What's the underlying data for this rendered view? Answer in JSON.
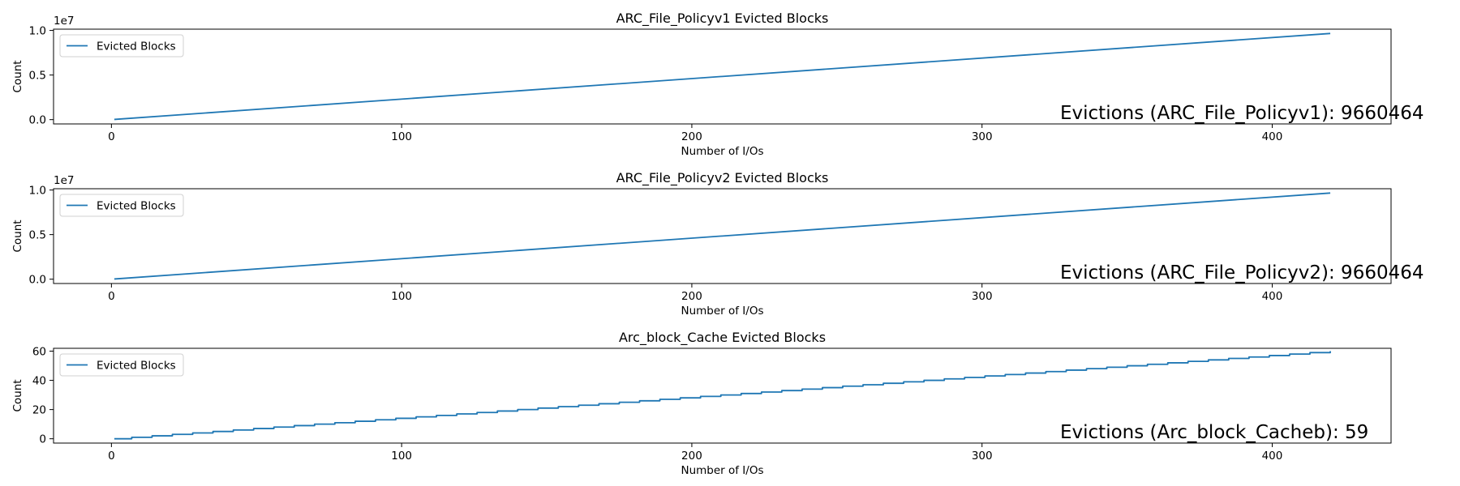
{
  "colors": {
    "series": "#1f77b4"
  },
  "chart_data": [
    {
      "type": "line",
      "title": "ARC_File_Policyv1 Evicted Blocks",
      "xlabel": "Number of I/Os",
      "ylabel": "Count",
      "x_range": [
        1,
        420
      ],
      "xlim": [
        -19.95,
        440.95
      ],
      "ylim": [
        -0.483,
        10.143
      ],
      "x_ticks": [
        0,
        100,
        200,
        300,
        400
      ],
      "x_tick_labels": [
        "0",
        "100",
        "200",
        "300",
        "400"
      ],
      "y_ticks": [
        0,
        5,
        10
      ],
      "y_tick_labels": [
        "0.0",
        "0.5",
        "1.0"
      ],
      "y_offset_label": "1e7",
      "series": [
        {
          "name": "Evicted Blocks",
          "shape": "linear",
          "start": 0.023,
          "end": 9.660464
        }
      ],
      "legend": {
        "position": "upper-left",
        "entries": [
          "Evicted Blocks"
        ]
      },
      "annotation": "Evictions (ARC_File_Policyv1): 9660464"
    },
    {
      "type": "line",
      "title": "ARC_File_Policyv2 Evicted Blocks",
      "xlabel": "Number of I/Os",
      "ylabel": "Count",
      "x_range": [
        1,
        420
      ],
      "xlim": [
        -19.95,
        440.95
      ],
      "ylim": [
        -0.483,
        10.143
      ],
      "x_ticks": [
        0,
        100,
        200,
        300,
        400
      ],
      "x_tick_labels": [
        "0",
        "100",
        "200",
        "300",
        "400"
      ],
      "y_ticks": [
        0,
        5,
        10
      ],
      "y_tick_labels": [
        "0.0",
        "0.5",
        "1.0"
      ],
      "y_offset_label": "1e7",
      "series": [
        {
          "name": "Evicted Blocks",
          "shape": "linear",
          "start": 0.023,
          "end": 9.660464
        }
      ],
      "legend": {
        "position": "upper-left",
        "entries": [
          "Evicted Blocks"
        ]
      },
      "annotation": "Evictions (ARC_File_Policyv2): 9660464"
    },
    {
      "type": "line",
      "title": "Arc_block_Cache Evicted Blocks",
      "xlabel": "Number of I/Os",
      "ylabel": "Count",
      "x_range": [
        1,
        420
      ],
      "xlim": [
        -19.95,
        440.95
      ],
      "ylim": [
        -2.95,
        61.95
      ],
      "x_ticks": [
        0,
        100,
        200,
        300,
        400
      ],
      "x_tick_labels": [
        "0",
        "100",
        "200",
        "300",
        "400"
      ],
      "y_ticks": [
        0,
        20,
        40,
        60
      ],
      "y_tick_labels": [
        "0",
        "20",
        "40",
        "60"
      ],
      "y_offset_label": "",
      "series": [
        {
          "name": "Evicted Blocks",
          "shape": "step",
          "start": 0,
          "end": 59,
          "step_every": 7,
          "steps_start_at": 7
        }
      ],
      "legend": {
        "position": "upper-left",
        "entries": [
          "Evicted Blocks"
        ]
      },
      "annotation": "Evictions (Arc_block_Cacheb): 59"
    }
  ]
}
